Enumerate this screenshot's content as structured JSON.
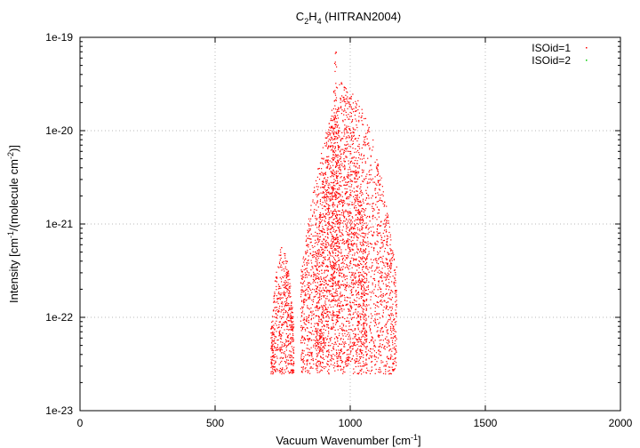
{
  "chart_data": {
    "type": "scatter",
    "title": {
      "base1": "C",
      "sub1": "2",
      "base2": "H",
      "sub2": "4",
      "rest": " (HITRAN2004)"
    },
    "xlabel": {
      "main": "Vacuum Wavenumber [cm",
      "sup": "-1",
      "close": "]"
    },
    "ylabel": {
      "part1": "Intensity [cm",
      "sup1": "-1",
      "part2": "/(molecule cm",
      "sup2": "-2",
      "part3": ")]"
    },
    "x_range": [
      0,
      2000
    ],
    "y_range": [
      1e-23,
      1e-19
    ],
    "y_scale": "log",
    "grid": true,
    "legend_position": "top-right",
    "x_ticks": [
      {
        "value": 0,
        "label": "0"
      },
      {
        "value": 500,
        "label": "500"
      },
      {
        "value": 1000,
        "label": "1000"
      },
      {
        "value": 1500,
        "label": "1500"
      },
      {
        "value": 2000,
        "label": "2000"
      }
    ],
    "y_ticks": [
      {
        "value": 1e-23,
        "label": "1e-23"
      },
      {
        "value": 1e-22,
        "label": "1e-22"
      },
      {
        "value": 1e-21,
        "label": "1e-21"
      },
      {
        "value": 1e-20,
        "label": "1e-20"
      },
      {
        "value": 1e-19,
        "label": "1e-19"
      }
    ],
    "series": [
      {
        "name": "ISOid=1",
        "color": "#ff0000",
        "bands": [
          {
            "x_min": 705,
            "x_max": 790,
            "y_min": 2.5e-23,
            "y_max": 6e-22
          },
          {
            "x_min": 815,
            "x_max": 1170,
            "y_min": 2.5e-23,
            "y_max": 2.6e-20
          },
          {
            "x_min": 870,
            "x_max": 1060,
            "y_min": 3e-23,
            "y_max": 3.5e-20
          },
          {
            "x_min": 930,
            "x_max": 960,
            "y_min": 1e-22,
            "y_max": 8.5e-20
          }
        ]
      },
      {
        "name": "ISOid=2",
        "color": "#00cc00",
        "bands": []
      }
    ]
  }
}
